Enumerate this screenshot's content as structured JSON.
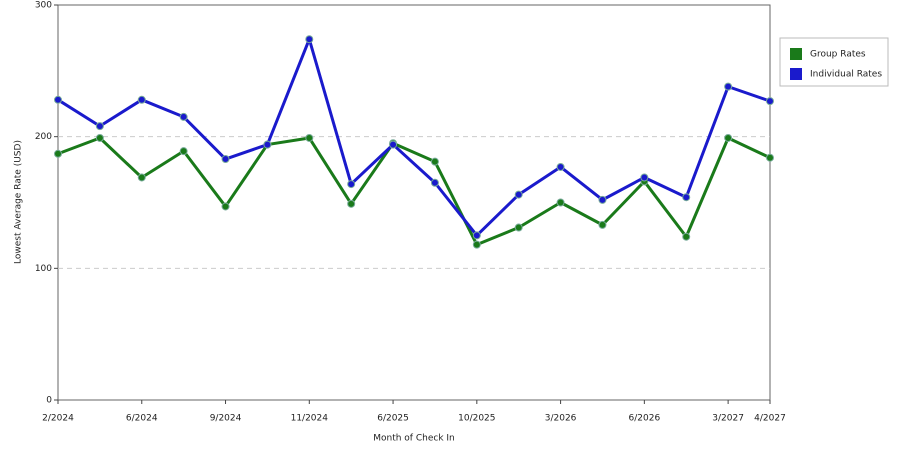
{
  "chart_data": {
    "type": "line",
    "x_label": "Month of Check In",
    "y_label": "Lowest Average Rate (USD)",
    "categories": [
      "2/2024",
      null,
      "6/2024",
      null,
      "9/2024",
      null,
      "11/2024",
      null,
      "6/2025",
      null,
      "10/2025",
      null,
      "3/2026",
      null,
      "6/2026",
      null,
      "3/2027",
      "4/2027"
    ],
    "series": [
      {
        "name": "Group Rates",
        "color": "#1a7a1a",
        "values": [
          187,
          199,
          169,
          189,
          147,
          194,
          199,
          149,
          195,
          181,
          118,
          131,
          150,
          133,
          166,
          124,
          199,
          184
        ]
      },
      {
        "name": "Individual Rates",
        "color": "#1a1acc",
        "values": [
          228,
          208,
          228,
          215,
          183,
          194,
          274,
          164,
          194,
          165,
          125,
          156,
          177,
          152,
          169,
          154,
          238,
          227
        ]
      }
    ],
    "ylim": [
      0,
      300
    ],
    "yticks": [
      0,
      100,
      200,
      300
    ],
    "grid": true,
    "legend": "right"
  }
}
